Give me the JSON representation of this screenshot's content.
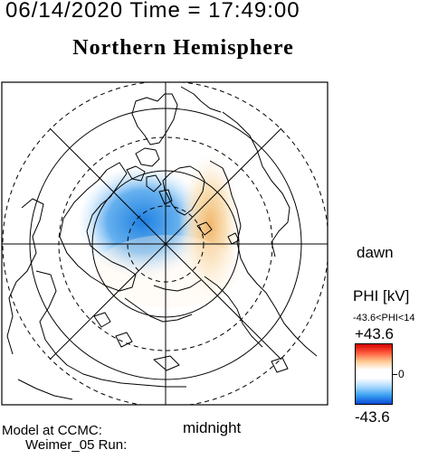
{
  "header": {
    "datetime": "06/14/2020 Time = 17:49:00",
    "title": "Northern Hemisphere"
  },
  "map": {
    "projection": "polar stereographic, north pole centered",
    "labels": {
      "dawn": "dawn",
      "midnight": "midnight"
    },
    "colors": {
      "frame": "#000000",
      "coast": "#000000",
      "positive": "#e8a040",
      "negative": "#1e7fe0"
    }
  },
  "colorbar": {
    "title": "PHI [kV]",
    "range_label": "-43.6<PHI<14",
    "max_label": "+43.6",
    "mid_label": "0",
    "min_label": "-43.6"
  },
  "footer": {
    "line1": "Model at CCMC:",
    "line2": "Weimer_05 Run:"
  }
}
